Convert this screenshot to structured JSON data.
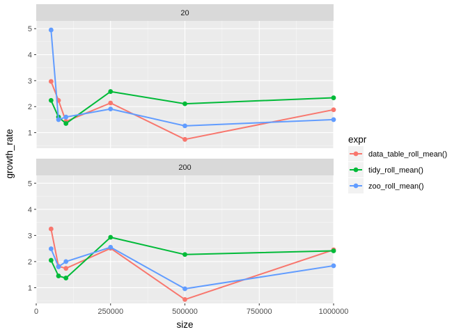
{
  "chart_data": {
    "type": "line",
    "xlabel": "size",
    "ylabel": "growth_rate",
    "xlim": [
      0,
      1000000
    ],
    "ylim": [
      0.4,
      5.3
    ],
    "x_ticks": [
      0,
      250000,
      500000,
      750000,
      1000000
    ],
    "x_tick_labels": [
      "0",
      "250000",
      "500000",
      "750000",
      "1000000"
    ],
    "y_ticks": [
      1,
      2,
      3,
      4,
      5
    ],
    "y_tick_labels": [
      "1",
      "2",
      "3",
      "4",
      "5"
    ],
    "grid": true,
    "legend": {
      "title": "expr",
      "placement": "right",
      "entries": [
        "data_table_roll_mean()",
        "tidy_roll_mean()",
        "zoo_roll_mean()"
      ]
    },
    "series_colors": [
      "#F8766D",
      "#00BA38",
      "#619CFF"
    ],
    "panels": [
      {
        "label": "20",
        "series": [
          {
            "name": "data_table_roll_mean()",
            "x": [
              50000,
              75000,
              100000,
              250000,
              500000,
              1000000
            ],
            "y": [
              2.97,
              2.24,
              1.43,
              2.14,
              0.74,
              1.88
            ]
          },
          {
            "name": "tidy_roll_mean()",
            "x": [
              50000,
              75000,
              100000,
              250000,
              500000,
              1000000
            ],
            "y": [
              2.24,
              1.6,
              1.35,
              2.58,
              2.11,
              2.34
            ]
          },
          {
            "name": "zoo_roll_mean()",
            "x": [
              50000,
              75000,
              100000,
              250000,
              500000,
              1000000
            ],
            "y": [
              4.95,
              1.5,
              1.6,
              1.91,
              1.26,
              1.5
            ]
          }
        ]
      },
      {
        "label": "200",
        "series": [
          {
            "name": "data_table_roll_mean()",
            "x": [
              50000,
              75000,
              100000,
              250000,
              500000,
              1000000
            ],
            "y": [
              3.25,
              1.82,
              1.74,
              2.51,
              0.55,
              2.45
            ]
          },
          {
            "name": "tidy_roll_mean()",
            "x": [
              50000,
              75000,
              100000,
              250000,
              500000,
              1000000
            ],
            "y": [
              2.05,
              1.45,
              1.37,
              2.93,
              2.27,
              2.41
            ]
          },
          {
            "name": "zoo_roll_mean()",
            "x": [
              50000,
              75000,
              100000,
              250000,
              500000,
              1000000
            ],
            "y": [
              2.49,
              1.8,
              2.0,
              2.55,
              0.96,
              1.84
            ]
          }
        ]
      }
    ]
  }
}
